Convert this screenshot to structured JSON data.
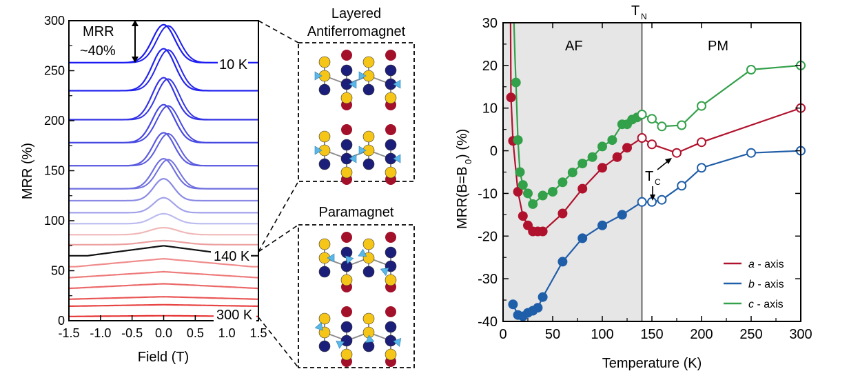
{
  "chart_data": [
    {
      "type": "line",
      "panel": "left",
      "xlabel": "Field (T)",
      "ylabel": "MRR (%)",
      "xlim": [
        -1.5,
        1.5
      ],
      "ylim": [
        0,
        300
      ],
      "xticks": [
        "-1.5",
        "-1.0",
        "-0.5",
        "0.0",
        "0.5",
        "1.0",
        "1.5"
      ],
      "yticks": [
        "0",
        "50",
        "100",
        "150",
        "200",
        "250",
        "300"
      ],
      "annotations": {
        "mrr_line1": "MRR",
        "mrr_line2": "~40%",
        "low_temp": "10 K",
        "mid_temp": "140 K",
        "high_temp": "300 K"
      },
      "curves": [
        {
          "offset": 258,
          "peak": 38,
          "width": 0.18,
          "color": "#1c1cf2"
        },
        {
          "offset": 230,
          "peak": 42,
          "width": 0.18,
          "color": "#2424ee"
        },
        {
          "offset": 201,
          "peak": 42,
          "width": 0.18,
          "color": "#3434e6"
        },
        {
          "offset": 178,
          "peak": 38,
          "width": 0.18,
          "color": "#4848e2"
        },
        {
          "offset": 155,
          "peak": 33,
          "width": 0.17,
          "color": "#5c5ce0"
        },
        {
          "offset": 132,
          "peak": 30,
          "width": 0.17,
          "color": "#7070e0"
        },
        {
          "offset": 120,
          "peak": 22,
          "width": 0.16,
          "color": "#8a8ae4"
        },
        {
          "offset": 108,
          "peak": 15,
          "width": 0.16,
          "color": "#a2a2ea"
        },
        {
          "offset": 97,
          "peak": 10,
          "width": 0.18,
          "color": "#bcbcf0"
        },
        {
          "offset": 86,
          "peak": 7,
          "width": 0.22,
          "color": "#f0b8b8"
        },
        {
          "offset": 76,
          "peak": 4,
          "width": 0.3,
          "color": "#eca0a0"
        },
        {
          "offset": 65,
          "peak": 10,
          "width": 1.2,
          "color": "#111111"
        },
        {
          "offset": 54,
          "peak": 8,
          "width": 1.4,
          "color": "#f08c8c"
        },
        {
          "offset": 43,
          "peak": 6,
          "width": 1.5,
          "color": "#ee7a7a"
        },
        {
          "offset": 32,
          "peak": 5,
          "width": 1.6,
          "color": "#ec6868"
        },
        {
          "offset": 21,
          "peak": 3,
          "width": 1.8,
          "color": "#ea5656"
        },
        {
          "offset": 14,
          "peak": 2,
          "width": 2.0,
          "color": "#e84444"
        },
        {
          "offset": 4,
          "peak": 1,
          "width": 2.0,
          "color": "#e63232"
        }
      ]
    },
    {
      "type": "line",
      "panel": "right",
      "xlabel": "Temperature (K)",
      "ylabel_main": "MRR(B=B",
      "ylabel_sub": "0",
      "ylabel_end": ") (%)",
      "xlim": [
        0,
        300
      ],
      "ylim": [
        -40,
        30
      ],
      "xticks": [
        "0",
        "50",
        "100",
        "150",
        "200",
        "250",
        "300"
      ],
      "yticks": [
        "-40",
        "-30",
        "-20",
        "-10",
        "0",
        "10",
        "20",
        "30"
      ],
      "af_region": [
        0,
        140
      ],
      "regions": {
        "af": "AF",
        "pm": "PM"
      },
      "tn_label": "T",
      "tn_sub": "N",
      "tc_label": "T",
      "tc_sub": "C",
      "series": [
        {
          "name": "a - axis",
          "color": "#b0122d",
          "x": [
            8,
            10,
            15,
            20,
            25,
            30,
            35,
            40,
            60,
            80,
            100,
            115,
            125,
            140,
            150,
            175,
            200,
            300
          ],
          "y": [
            12.5,
            2.3,
            -9.6,
            -15.3,
            -17.5,
            -18.9,
            -18.9,
            -18.9,
            -14.7,
            -8.9,
            -4,
            -1.5,
            0.7,
            3,
            1.5,
            -0.5,
            2,
            10
          ],
          "open_from": 13
        },
        {
          "name": "b - axis",
          "color": "#1f5ea8",
          "x": [
            10,
            15,
            20,
            25,
            30,
            35,
            40,
            60,
            80,
            100,
            120,
            140,
            150,
            160,
            180,
            200,
            250,
            300
          ],
          "y": [
            -36,
            -38.5,
            -38.8,
            -38,
            -37.5,
            -36.8,
            -34.3,
            -26,
            -20.5,
            -17.5,
            -15,
            -12,
            -12,
            -11.5,
            -8.2,
            -4,
            -0.5,
            0
          ],
          "open_from": 11
        },
        {
          "name": "c - axis",
          "color": "#33a04a",
          "x": [
            13,
            15,
            17,
            20,
            25,
            30,
            40,
            50,
            60,
            70,
            80,
            90,
            100,
            110,
            120,
            125,
            130,
            135,
            140,
            150,
            160,
            180,
            200,
            250,
            300
          ],
          "y": [
            16,
            2.5,
            -5,
            -8,
            -10,
            -12.5,
            -10.5,
            -9.6,
            -7.4,
            -5.1,
            -3,
            -1.5,
            1,
            2.5,
            6.2,
            6.2,
            7.3,
            7.8,
            8.5,
            7.5,
            5.7,
            6,
            10.5,
            19,
            20
          ],
          "open_from": 18
        }
      ]
    }
  ],
  "diagrams": {
    "top_title_line1": "Layered",
    "top_title_line2": "Antiferromagnet",
    "bottom_title": "Paramagnet"
  }
}
